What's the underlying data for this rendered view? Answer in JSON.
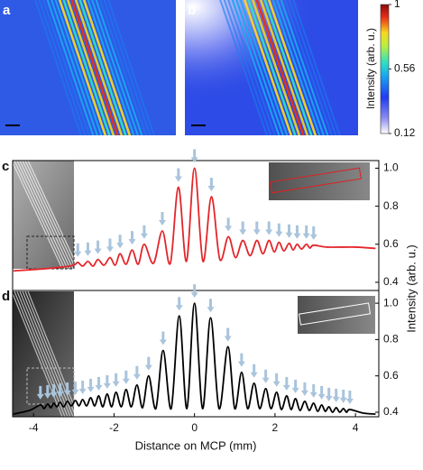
{
  "panel_labels": [
    "a",
    "b",
    "c",
    "d"
  ],
  "colorbar": {
    "label": "Intensity (arb. u.)",
    "lim": [
      0.12,
      1
    ],
    "ticks": [
      0.12,
      0.56,
      1
    ]
  },
  "chart_data": [
    {
      "type": "line",
      "ylabel": "Intensity (arb. u.)",
      "xlim": [
        -4.52,
        4.58
      ],
      "ylim": [
        0.357,
        1.04
      ],
      "yticks": [
        0.4,
        0.6,
        0.8,
        {
          "value": 1,
          "label": "1.0"
        }
      ],
      "x": [
        -4.5,
        -3.8,
        -3.3,
        -3.0,
        -2.9,
        -2.78,
        -2.65,
        -2.52,
        -2.4,
        -2.25,
        -2.1,
        -1.97,
        -1.85,
        -1.7,
        -1.55,
        -1.4,
        -1.25,
        -1.02,
        -0.8,
        -0.6,
        -0.4,
        -0.2,
        0,
        0.21,
        0.42,
        0.63,
        0.84,
        1.02,
        1.2,
        1.38,
        1.55,
        1.7,
        1.85,
        1.98,
        2.1,
        2.22,
        2.35,
        2.45,
        2.55,
        2.66,
        2.78,
        2.87,
        2.96,
        3.3,
        4.0,
        4.5
      ],
      "series": [
        {
          "color": "#e3262b",
          "values": [
            0.46,
            0.47,
            0.48,
            0.49,
            0.505,
            0.485,
            0.51,
            0.485,
            0.52,
            0.49,
            0.53,
            0.49,
            0.55,
            0.495,
            0.57,
            0.495,
            0.6,
            0.5,
            0.67,
            0.5,
            0.9,
            0.51,
            1.0,
            0.51,
            0.85,
            0.52,
            0.64,
            0.53,
            0.62,
            0.54,
            0.62,
            0.55,
            0.62,
            0.56,
            0.61,
            0.565,
            0.605,
            0.57,
            0.6,
            0.575,
            0.6,
            0.58,
            0.595,
            0.585,
            0.585,
            0.578
          ]
        }
      ]
    },
    {
      "type": "line",
      "xlabel": "Distance on MCP (mm)",
      "xlim": [
        -4.52,
        4.58
      ],
      "xticks": [
        -4,
        -2,
        0,
        2,
        4
      ],
      "ylim": [
        0.375,
        1.07
      ],
      "yticks": [
        0.4,
        0.6,
        0.8,
        {
          "value": 1,
          "label": "1.0"
        }
      ],
      "x": [
        -4.5,
        -4.1,
        -3.83,
        -3.74,
        -3.65,
        -3.57,
        -3.5,
        -3.42,
        -3.34,
        -3.25,
        -3.16,
        -3.06,
        -2.96,
        -2.87,
        -2.78,
        -2.68,
        -2.58,
        -2.48,
        -2.38,
        -2.28,
        -2.17,
        -2.06,
        -1.95,
        -1.82,
        -1.7,
        -1.57,
        -1.43,
        -1.29,
        -1.14,
        -0.96,
        -0.78,
        -0.58,
        -0.38,
        -0.19,
        0,
        0.2,
        0.4,
        0.61,
        0.83,
        1.0,
        1.17,
        1.32,
        1.48,
        1.62,
        1.77,
        1.9,
        2.04,
        2.16,
        2.29,
        2.4,
        2.51,
        2.62,
        2.74,
        2.85,
        2.96,
        3.06,
        3.16,
        3.25,
        3.34,
        3.43,
        3.52,
        3.61,
        3.7,
        3.78,
        3.86,
        4.2,
        4.5
      ],
      "series": [
        {
          "color": "#000000",
          "values": [
            0.39,
            0.41,
            0.44,
            0.42,
            0.445,
            0.425,
            0.45,
            0.43,
            0.455,
            0.43,
            0.46,
            0.435,
            0.465,
            0.435,
            0.47,
            0.435,
            0.48,
            0.435,
            0.49,
            0.43,
            0.5,
            0.43,
            0.51,
            0.43,
            0.525,
            0.43,
            0.55,
            0.425,
            0.6,
            0.42,
            0.74,
            0.42,
            0.93,
            0.42,
            1.0,
            0.42,
            0.92,
            0.42,
            0.76,
            0.42,
            0.62,
            0.42,
            0.56,
            0.42,
            0.53,
            0.42,
            0.51,
            0.415,
            0.49,
            0.415,
            0.475,
            0.41,
            0.46,
            0.41,
            0.45,
            0.405,
            0.44,
            0.405,
            0.43,
            0.4,
            0.425,
            0.4,
            0.42,
            0.4,
            0.415,
            0.395,
            0.39
          ]
        }
      ]
    }
  ]
}
